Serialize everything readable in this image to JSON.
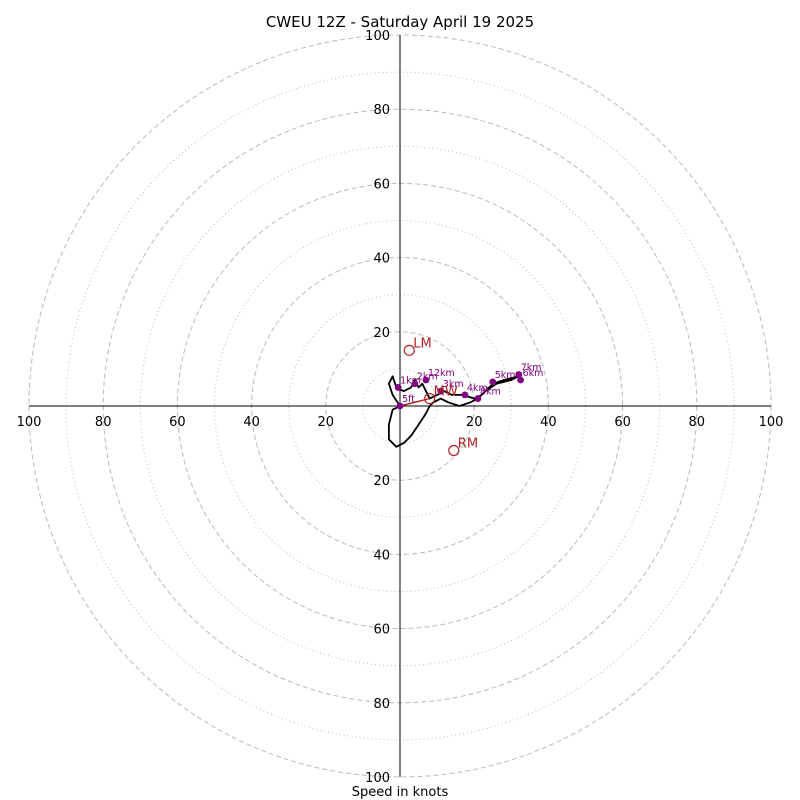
{
  "chart_data": {
    "type": "scatter",
    "subtype": "hodograph",
    "title": "CWEU 12Z - Saturday April 19 2025",
    "xlabel": "Speed in knots",
    "ylabel": "",
    "xlim": [
      -100,
      100
    ],
    "ylim": [
      -100,
      100
    ],
    "ticks": [
      "100",
      "80",
      "60",
      "40",
      "20",
      "20",
      "40",
      "60",
      "80",
      "100"
    ],
    "rings_major": [
      20,
      40,
      60,
      80,
      100
    ],
    "rings_minor": [
      10,
      30,
      50,
      70,
      90
    ],
    "grid": true,
    "colors": {
      "trace": "#000000",
      "height_marker": "#800080",
      "motion": "#b22222",
      "axis": "#000000",
      "grid": "#bbbbbb"
    },
    "hodograph_trace": [
      [
        0,
        0
      ],
      [
        -2,
        3
      ],
      [
        -3,
        6
      ],
      [
        -2,
        8
      ],
      [
        -1,
        5
      ],
      [
        1,
        4
      ],
      [
        3,
        5
      ],
      [
        4,
        7
      ],
      [
        5,
        5
      ],
      [
        6,
        6
      ],
      [
        7,
        4
      ],
      [
        8,
        2
      ],
      [
        10,
        3
      ],
      [
        12,
        4
      ],
      [
        14,
        3
      ],
      [
        17,
        3
      ],
      [
        20,
        2
      ],
      [
        22,
        3
      ],
      [
        25,
        6
      ],
      [
        28,
        7
      ],
      [
        32,
        8
      ],
      [
        30,
        7
      ],
      [
        26,
        6
      ],
      [
        23,
        4
      ],
      [
        21,
        2
      ],
      [
        19,
        1
      ],
      [
        16,
        0
      ],
      [
        13,
        1
      ],
      [
        11,
        2
      ],
      [
        9,
        1
      ],
      [
        8,
        0
      ],
      [
        7,
        -2
      ],
      [
        5,
        -5
      ],
      [
        3,
        -8
      ],
      [
        1,
        -10
      ],
      [
        -1,
        -11
      ],
      [
        -2,
        -10
      ],
      [
        -3,
        -9
      ],
      [
        -3,
        -5
      ],
      [
        -2,
        -1
      ],
      [
        0,
        0
      ]
    ],
    "height_markers": [
      {
        "label": "5ft",
        "x": 0,
        "y": 0
      },
      {
        "label": "1km",
        "x": -0.5,
        "y": 5
      },
      {
        "label": "2km",
        "x": 4,
        "y": 6
      },
      {
        "label": "12km",
        "x": 7,
        "y": 7
      },
      {
        "label": "3km",
        "x": 11,
        "y": 4
      },
      {
        "label": "4km",
        "x": 17.5,
        "y": 3
      },
      {
        "label": "8km",
        "x": 21,
        "y": 2
      },
      {
        "label": "5km",
        "x": 25,
        "y": 6.5
      },
      {
        "label": "7km",
        "x": 32,
        "y": 8.5
      },
      {
        "label": "6km",
        "x": 32.5,
        "y": 7
      }
    ],
    "storm_motions": [
      {
        "label": "LM",
        "x": 2.5,
        "y": 15
      },
      {
        "label": "RM",
        "x": 14.5,
        "y": -12
      },
      {
        "label": "MW",
        "x": 8,
        "y": 2
      }
    ],
    "shear_vector": {
      "x0": 0,
      "y0": 0,
      "x1": 8,
      "y1": 2
    }
  }
}
